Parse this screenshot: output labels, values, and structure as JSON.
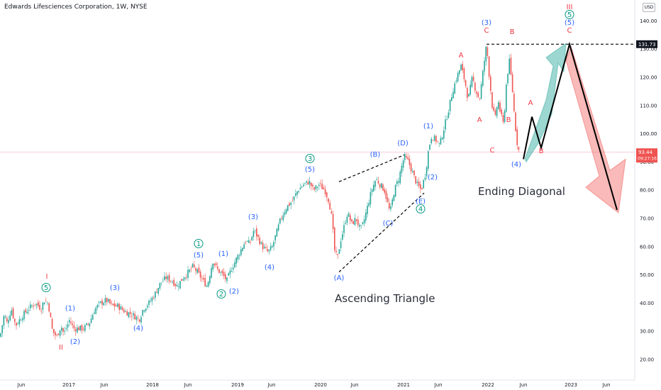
{
  "header": {
    "title": "Edwards Lifesciences Corporation, 1W, NYSE",
    "currency": "USD"
  },
  "colors": {
    "up": "#26a69a",
    "down": "#ef5350",
    "blue": "#2962ff",
    "green": "#089981",
    "red": "#f23645"
  },
  "chart_data": {
    "type": "candlestick",
    "y_ticks": [
      "140.00",
      "130.00",
      "120.00",
      "110.00",
      "100.00",
      "90.00",
      "80.00",
      "70.00",
      "60.00",
      "50.00",
      "40.00",
      "30.00",
      "20.00"
    ],
    "x_ticks": [
      "Jun",
      "2017",
      "Jun",
      "2018",
      "Jun",
      "2019",
      "Jun",
      "2020",
      "Jun",
      "2021",
      "Jun",
      "2022",
      "Jun",
      "2023",
      "Jun"
    ],
    "price_labels": {
      "top": "131.73",
      "current": "93.44",
      "countdown": "09:27:16"
    },
    "text_annotations": {
      "triangle": "Ascending Triangle",
      "diagonal": "Ending Diagonal"
    },
    "wave_labels": [
      {
        "t": "I",
        "c": "red"
      },
      {
        "t": "5",
        "c": "green",
        "circle": true
      },
      {
        "t": "II",
        "c": "red"
      },
      {
        "t": "(1)",
        "c": "blue"
      },
      {
        "t": "(2)",
        "c": "blue"
      },
      {
        "t": "(3)",
        "c": "blue"
      },
      {
        "t": "(4)",
        "c": "blue"
      },
      {
        "t": "1",
        "c": "green",
        "circle": true
      },
      {
        "t": "(5)",
        "c": "blue"
      },
      {
        "t": "(1)",
        "c": "blue"
      },
      {
        "t": "2",
        "c": "green",
        "circle": true
      },
      {
        "t": "(2)",
        "c": "blue"
      },
      {
        "t": "(3)",
        "c": "blue"
      },
      {
        "t": "(4)",
        "c": "blue"
      },
      {
        "t": "3",
        "c": "green",
        "circle": true
      },
      {
        "t": "(5)",
        "c": "blue"
      },
      {
        "t": "(A)",
        "c": "blue"
      },
      {
        "t": "(B)",
        "c": "blue"
      },
      {
        "t": "(C)",
        "c": "blue"
      },
      {
        "t": "(D)",
        "c": "blue"
      },
      {
        "t": "(E)",
        "c": "blue"
      },
      {
        "t": "4",
        "c": "green",
        "circle": true
      },
      {
        "t": "(1)",
        "c": "blue"
      },
      {
        "t": "(2)",
        "c": "blue"
      },
      {
        "t": "(3)",
        "c": "blue"
      },
      {
        "t": "C",
        "c": "red"
      },
      {
        "t": "A",
        "c": "red"
      },
      {
        "t": "B",
        "c": "red"
      },
      {
        "t": "A",
        "c": "red"
      },
      {
        "t": "B",
        "c": "red"
      },
      {
        "t": "C",
        "c": "red"
      },
      {
        "t": "(4)",
        "c": "blue"
      },
      {
        "t": "A",
        "c": "red"
      },
      {
        "t": "B",
        "c": "red"
      },
      {
        "t": "III",
        "c": "red"
      },
      {
        "t": "5",
        "c": "green",
        "circle": true
      },
      {
        "t": "(5)",
        "c": "blue"
      },
      {
        "t": "C",
        "c": "red"
      }
    ],
    "price_path": [
      [
        0,
        28
      ],
      [
        6,
        36
      ],
      [
        10,
        33
      ],
      [
        16,
        38
      ],
      [
        22,
        32
      ],
      [
        30,
        35
      ],
      [
        40,
        38
      ],
      [
        50,
        40
      ],
      [
        58,
        38
      ],
      [
        62,
        41
      ],
      [
        68,
        40
      ],
      [
        74,
        30
      ],
      [
        80,
        28
      ],
      [
        86,
        32
      ],
      [
        90,
        29
      ],
      [
        98,
        34
      ],
      [
        104,
        31
      ],
      [
        118,
        31
      ],
      [
        126,
        33
      ],
      [
        134,
        38
      ],
      [
        142,
        40
      ],
      [
        150,
        41
      ],
      [
        158,
        39
      ],
      [
        166,
        39
      ],
      [
        176,
        37
      ],
      [
        186,
        36
      ],
      [
        192,
        35
      ],
      [
        196,
        34
      ],
      [
        202,
        38
      ],
      [
        210,
        40
      ],
      [
        218,
        43
      ],
      [
        226,
        47
      ],
      [
        234,
        49
      ],
      [
        242,
        48
      ],
      [
        250,
        46
      ],
      [
        258,
        49
      ],
      [
        266,
        51
      ],
      [
        272,
        53
      ],
      [
        278,
        51
      ],
      [
        286,
        48
      ],
      [
        292,
        46
      ],
      [
        300,
        55
      ],
      [
        306,
        52
      ],
      [
        314,
        50
      ],
      [
        320,
        48
      ],
      [
        326,
        52
      ],
      [
        334,
        56
      ],
      [
        340,
        59
      ],
      [
        346,
        62
      ],
      [
        352,
        61
      ],
      [
        358,
        66
      ],
      [
        364,
        63
      ],
      [
        370,
        60
      ],
      [
        378,
        58
      ],
      [
        384,
        60
      ],
      [
        390,
        65
      ],
      [
        396,
        70
      ],
      [
        404,
        74
      ],
      [
        412,
        76
      ],
      [
        420,
        80
      ],
      [
        428,
        82
      ],
      [
        436,
        83
      ],
      [
        442,
        80
      ],
      [
        450,
        82
      ],
      [
        458,
        80
      ],
      [
        464,
        76
      ],
      [
        468,
        70
      ],
      [
        472,
        58
      ],
      [
        476,
        56
      ],
      [
        480,
        62
      ],
      [
        486,
        68
      ],
      [
        490,
        72
      ],
      [
        496,
        68
      ],
      [
        502,
        70
      ],
      [
        508,
        66
      ],
      [
        512,
        68
      ],
      [
        518,
        74
      ],
      [
        524,
        80
      ],
      [
        530,
        84
      ],
      [
        536,
        82
      ],
      [
        542,
        80
      ],
      [
        546,
        76
      ],
      [
        550,
        72
      ],
      [
        556,
        80
      ],
      [
        562,
        84
      ],
      [
        566,
        88
      ],
      [
        570,
        92
      ],
      [
        576,
        90
      ],
      [
        582,
        86
      ],
      [
        588,
        82
      ],
      [
        594,
        80
      ],
      [
        600,
        86
      ],
      [
        604,
        94
      ],
      [
        608,
        99
      ],
      [
        614,
        98
      ],
      [
        620,
        96
      ],
      [
        626,
        102
      ],
      [
        632,
        108
      ],
      [
        638,
        115
      ],
      [
        644,
        120
      ],
      [
        650,
        124
      ],
      [
        656,
        118
      ],
      [
        660,
        112
      ],
      [
        666,
        120
      ],
      [
        670,
        116
      ],
      [
        676,
        112
      ],
      [
        682,
        124
      ],
      [
        686,
        131.7
      ],
      [
        690,
        120
      ],
      [
        694,
        110
      ],
      [
        698,
        105
      ],
      [
        702,
        112
      ],
      [
        706,
        107
      ],
      [
        710,
        103
      ],
      [
        714,
        118
      ],
      [
        718,
        126
      ],
      [
        722,
        117
      ],
      [
        726,
        104
      ],
      [
        730,
        95
      ],
      [
        733,
        93.4
      ]
    ],
    "projection": [
      [
        738,
        91
      ],
      [
        750,
        106
      ],
      [
        763,
        95
      ],
      [
        803,
        131.73
      ],
      [
        870,
        73
      ]
    ],
    "triangle_upper": [
      [
        478,
        83
      ],
      [
        570,
        92.5
      ]
    ],
    "triangle_lower": [
      [
        478,
        51
      ],
      [
        598,
        79
      ]
    ]
  }
}
